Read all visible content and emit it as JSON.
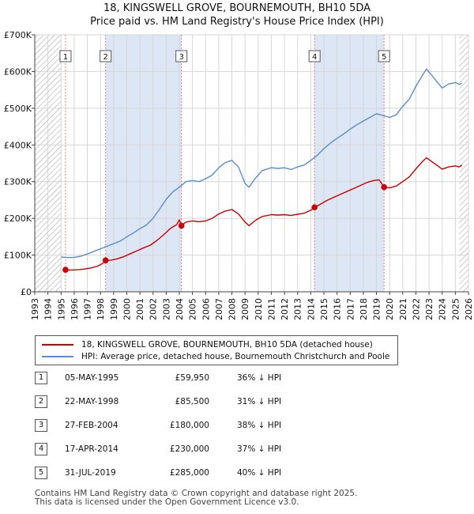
{
  "title_line1": "18, KINGSWELL GROVE, BOURNEMOUTH, BH10 5DA",
  "title_line2": "Price paid vs. HM Land Registry's House Price Index (HPI)",
  "legend": {
    "property": "18, KINGSWELL GROVE, BOURNEMOUTH, BH10 5DA (detached house)",
    "hpi": "HPI: Average price, detached house, Bournemouth Christchurch and Poole"
  },
  "colors": {
    "property": "#cc0000",
    "hpi": "#5b8ccc",
    "shade": "#dde6f4",
    "marker_line": "#e08080"
  },
  "sales": [
    {
      "n": "1",
      "date": "05-MAY-1995",
      "price": "£59,950",
      "delta": "36% ↓ HPI"
    },
    {
      "n": "2",
      "date": "22-MAY-1998",
      "price": "£85,500",
      "delta": "31% ↓ HPI"
    },
    {
      "n": "3",
      "date": "27-FEB-2004",
      "price": "£180,000",
      "delta": "38% ↓ HPI"
    },
    {
      "n": "4",
      "date": "17-APR-2014",
      "price": "£230,000",
      "delta": "37% ↓ HPI"
    },
    {
      "n": "5",
      "date": "31-JUL-2019",
      "price": "£285,000",
      "delta": "40% ↓ HPI"
    }
  ],
  "footer_line1": "Contains HM Land Registry data © Crown copyright and database right 2025.",
  "footer_line2": "This data is licensed under the Open Government Licence v3.0.",
  "chart_data": {
    "type": "line",
    "title": "18, KINGSWELL GROVE, BOURNEMOUTH, BH10 5DA — Price paid vs. HM Land Registry's House Price Index (HPI)",
    "xlim": [
      1993,
      2026
    ],
    "ylim": [
      0,
      700000
    ],
    "x_ticks": [
      "1993",
      "1994",
      "1995",
      "1996",
      "1997",
      "1998",
      "1999",
      "2000",
      "2001",
      "2002",
      "2003",
      "2004",
      "2005",
      "2006",
      "2007",
      "2008",
      "2009",
      "2010",
      "2011",
      "2012",
      "2013",
      "2014",
      "2015",
      "2016",
      "2017",
      "2018",
      "2019",
      "2020",
      "2021",
      "2022",
      "2023",
      "2024",
      "2025",
      "2026"
    ],
    "y_ticks": [
      {
        "value": 0,
        "label": "£0"
      },
      {
        "value": 100000,
        "label": "£100K"
      },
      {
        "value": 200000,
        "label": "£200K"
      },
      {
        "value": 300000,
        "label": "£300K"
      },
      {
        "value": 400000,
        "label": "£400K"
      },
      {
        "value": 500000,
        "label": "£500K"
      },
      {
        "value": 600000,
        "label": "£600K"
      },
      {
        "value": 700000,
        "label": "£700K"
      }
    ],
    "hatched_ranges": [
      [
        1993,
        1995.0
      ],
      [
        2025.3,
        2026
      ]
    ],
    "shaded_ranges": [
      [
        1998.39,
        2004.16
      ],
      [
        2014.29,
        2019.58
      ]
    ],
    "sale_markers": [
      {
        "label": "1",
        "x": 1995.34,
        "y": 59950
      },
      {
        "label": "2",
        "x": 1998.39,
        "y": 85500
      },
      {
        "label": "3",
        "x": 2004.16,
        "y": 180000
      },
      {
        "label": "4",
        "x": 2014.29,
        "y": 230000
      },
      {
        "label": "5",
        "x": 2019.58,
        "y": 285000
      }
    ],
    "series": [
      {
        "name": "HPI: Average price, detached house, Bournemouth Christchurch and Poole",
        "points": [
          [
            1995.0,
            95000
          ],
          [
            1995.5,
            93000
          ],
          [
            1996.0,
            94000
          ],
          [
            1996.5,
            97000
          ],
          [
            1997.0,
            103000
          ],
          [
            1997.5,
            110000
          ],
          [
            1998.0,
            117000
          ],
          [
            1998.5,
            124000
          ],
          [
            1999.0,
            131000
          ],
          [
            1999.5,
            138000
          ],
          [
            2000.0,
            150000
          ],
          [
            2000.5,
            160000
          ],
          [
            2001.0,
            172000
          ],
          [
            2001.5,
            182000
          ],
          [
            2002.0,
            200000
          ],
          [
            2002.5,
            225000
          ],
          [
            2003.0,
            252000
          ],
          [
            2003.5,
            272000
          ],
          [
            2004.0,
            285000
          ],
          [
            2004.5,
            300000
          ],
          [
            2005.0,
            303000
          ],
          [
            2005.5,
            300000
          ],
          [
            2006.0,
            308000
          ],
          [
            2006.5,
            318000
          ],
          [
            2007.0,
            338000
          ],
          [
            2007.5,
            352000
          ],
          [
            2008.0,
            358000
          ],
          [
            2008.5,
            340000
          ],
          [
            2009.0,
            295000
          ],
          [
            2009.3,
            285000
          ],
          [
            2009.8,
            310000
          ],
          [
            2010.3,
            330000
          ],
          [
            2011.0,
            338000
          ],
          [
            2011.5,
            336000
          ],
          [
            2012.0,
            338000
          ],
          [
            2012.5,
            333000
          ],
          [
            2013.0,
            340000
          ],
          [
            2013.5,
            345000
          ],
          [
            2014.0,
            358000
          ],
          [
            2014.5,
            372000
          ],
          [
            2015.0,
            390000
          ],
          [
            2015.5,
            405000
          ],
          [
            2016.0,
            418000
          ],
          [
            2016.5,
            430000
          ],
          [
            2017.0,
            443000
          ],
          [
            2017.5,
            455000
          ],
          [
            2018.0,
            465000
          ],
          [
            2018.5,
            475000
          ],
          [
            2019.0,
            485000
          ],
          [
            2019.5,
            480000
          ],
          [
            2020.0,
            475000
          ],
          [
            2020.5,
            482000
          ],
          [
            2021.0,
            505000
          ],
          [
            2021.5,
            525000
          ],
          [
            2022.0,
            560000
          ],
          [
            2022.5,
            590000
          ],
          [
            2022.8,
            607000
          ],
          [
            2023.2,
            590000
          ],
          [
            2023.7,
            568000
          ],
          [
            2024.0,
            555000
          ],
          [
            2024.5,
            566000
          ],
          [
            2025.0,
            570000
          ],
          [
            2025.3,
            565000
          ],
          [
            2025.5,
            568000
          ]
        ]
      },
      {
        "name": "18, KINGSWELL GROVE, BOURNEMOUTH, BH10 5DA (detached house)",
        "points": [
          [
            1995.34,
            59950
          ],
          [
            1995.8,
            59000
          ],
          [
            1996.3,
            60000
          ],
          [
            1996.8,
            62000
          ],
          [
            1997.3,
            65000
          ],
          [
            1997.8,
            70000
          ],
          [
            1998.2,
            78000
          ],
          [
            1998.39,
            85500
          ],
          [
            1998.8,
            86000
          ],
          [
            1999.3,
            90000
          ],
          [
            1999.8,
            96000
          ],
          [
            2000.3,
            104000
          ],
          [
            2000.8,
            112000
          ],
          [
            2001.3,
            120000
          ],
          [
            2001.8,
            127000
          ],
          [
            2002.3,
            140000
          ],
          [
            2002.8,
            155000
          ],
          [
            2003.3,
            172000
          ],
          [
            2003.8,
            183000
          ],
          [
            2004.0,
            196000
          ],
          [
            2004.16,
            180000
          ],
          [
            2004.5,
            190000
          ],
          [
            2005.0,
            193000
          ],
          [
            2005.5,
            191000
          ],
          [
            2006.0,
            193000
          ],
          [
            2006.5,
            200000
          ],
          [
            2007.0,
            212000
          ],
          [
            2007.5,
            220000
          ],
          [
            2008.0,
            224000
          ],
          [
            2008.5,
            212000
          ],
          [
            2009.0,
            190000
          ],
          [
            2009.3,
            180000
          ],
          [
            2009.8,
            195000
          ],
          [
            2010.3,
            205000
          ],
          [
            2011.0,
            210000
          ],
          [
            2011.5,
            209000
          ],
          [
            2012.0,
            210000
          ],
          [
            2012.5,
            208000
          ],
          [
            2013.0,
            211000
          ],
          [
            2013.5,
            214000
          ],
          [
            2014.0,
            222000
          ],
          [
            2014.29,
            230000
          ],
          [
            2014.8,
            240000
          ],
          [
            2015.3,
            250000
          ],
          [
            2015.8,
            258000
          ],
          [
            2016.3,
            266000
          ],
          [
            2016.8,
            274000
          ],
          [
            2017.3,
            282000
          ],
          [
            2017.8,
            290000
          ],
          [
            2018.3,
            298000
          ],
          [
            2018.8,
            303000
          ],
          [
            2019.2,
            305000
          ],
          [
            2019.58,
            285000
          ],
          [
            2020.0,
            283000
          ],
          [
            2020.5,
            288000
          ],
          [
            2021.0,
            300000
          ],
          [
            2021.5,
            313000
          ],
          [
            2022.0,
            335000
          ],
          [
            2022.5,
            355000
          ],
          [
            2022.8,
            365000
          ],
          [
            2023.2,
            355000
          ],
          [
            2023.7,
            342000
          ],
          [
            2024.0,
            334000
          ],
          [
            2024.5,
            340000
          ],
          [
            2025.0,
            343000
          ],
          [
            2025.3,
            340000
          ],
          [
            2025.5,
            345000
          ]
        ]
      }
    ],
    "legend_position": "below-chart"
  }
}
